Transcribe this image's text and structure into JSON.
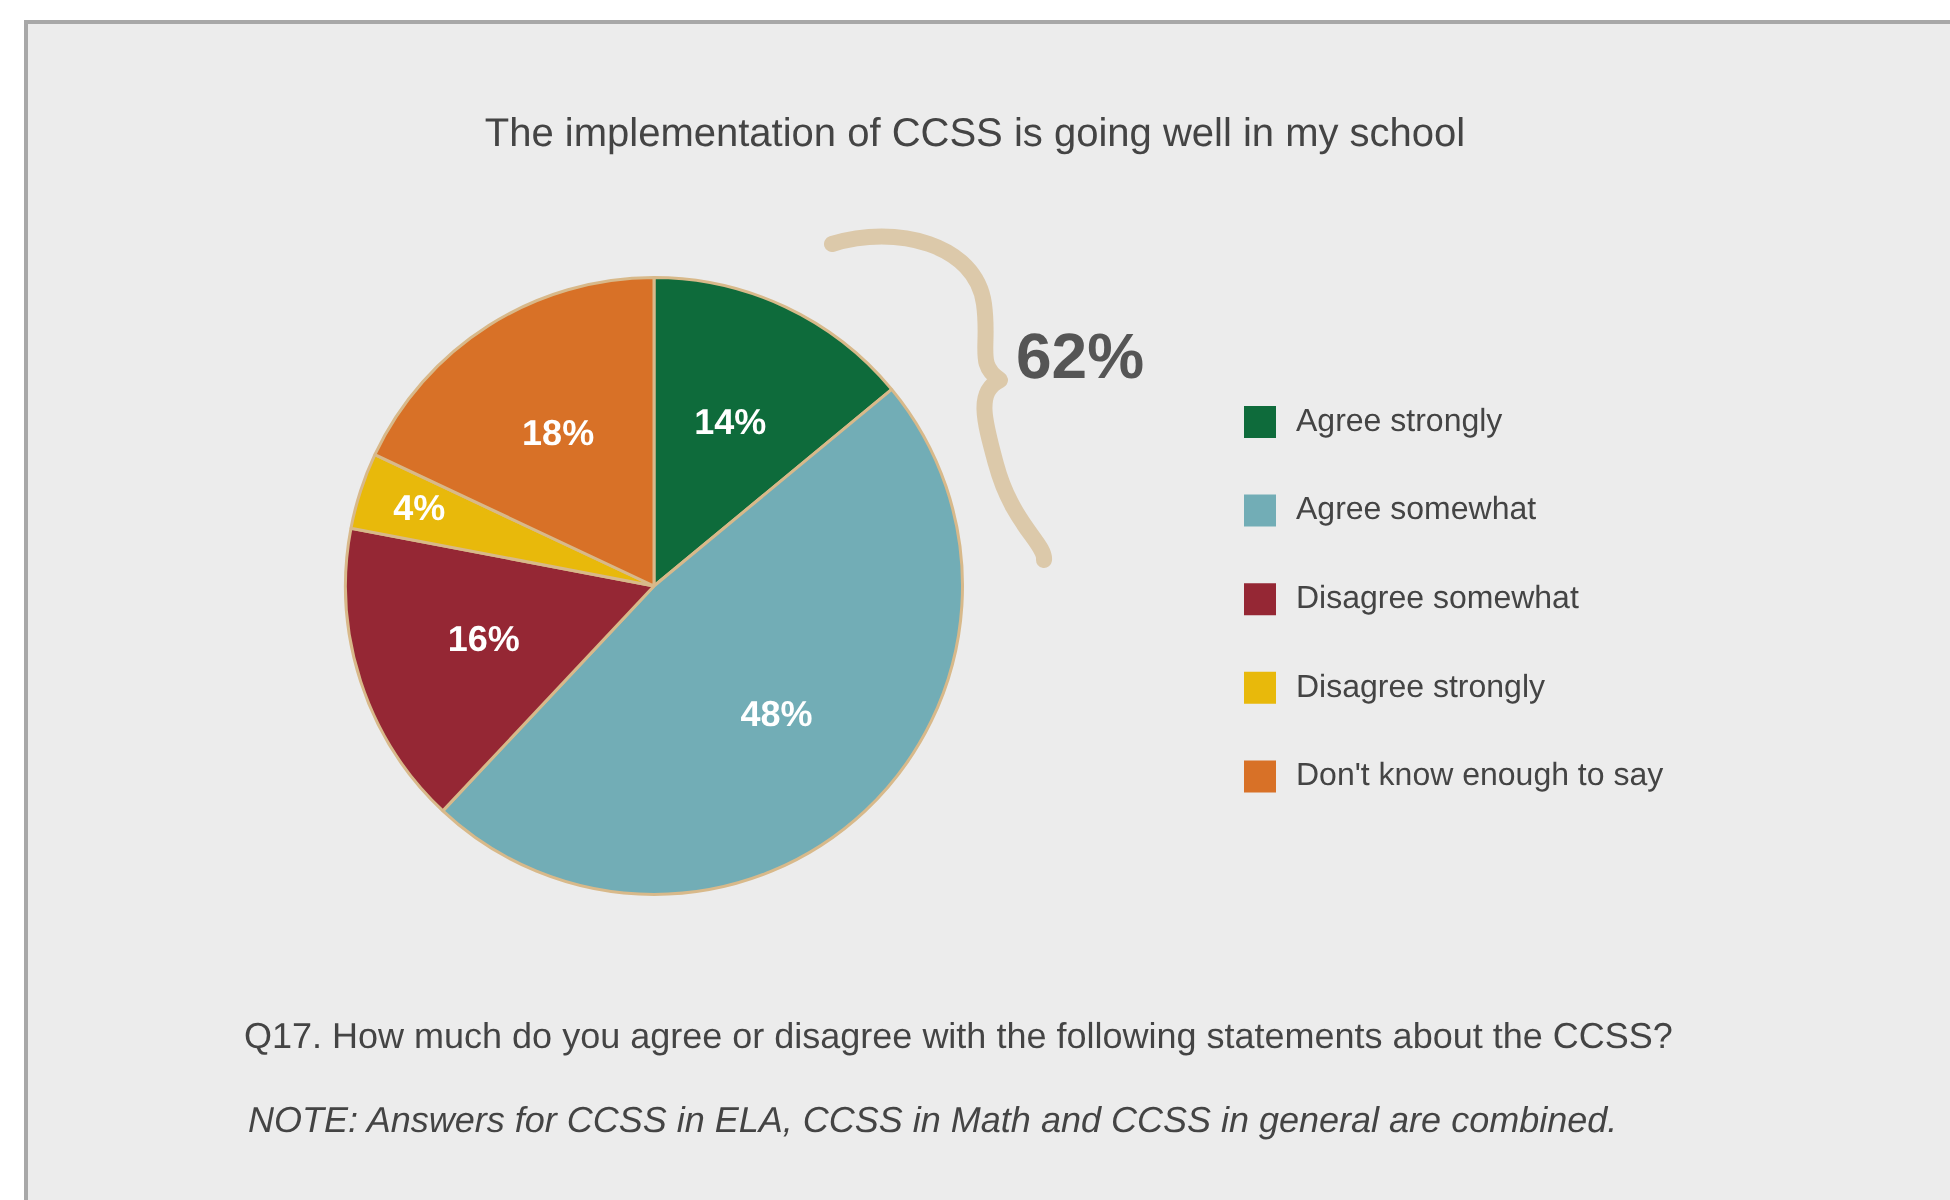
{
  "chart_data": {
    "type": "pie",
    "title": "The implementation of CCSS is going well in my school",
    "categories": [
      "Agree strongly",
      "Agree somewhat",
      "Disagree somewhat",
      "Disagree strongly",
      "Don't know enough to say"
    ],
    "values": [
      14,
      48,
      16,
      4,
      18
    ],
    "colors": [
      "#0e6b3b",
      "#72adb6",
      "#952734",
      "#e8b90b",
      "#d87127"
    ],
    "value_labels": [
      "14%",
      "48%",
      "16%",
      "4%",
      "18%"
    ],
    "legend": "right",
    "annotations": [
      "62%",
      "Q17. How much do you agree or disagree with the following statements about the CCSS?",
      "NOTE: Answers for CCSS in ELA, CCSS in Math and CCSS in general are combined."
    ]
  }
}
